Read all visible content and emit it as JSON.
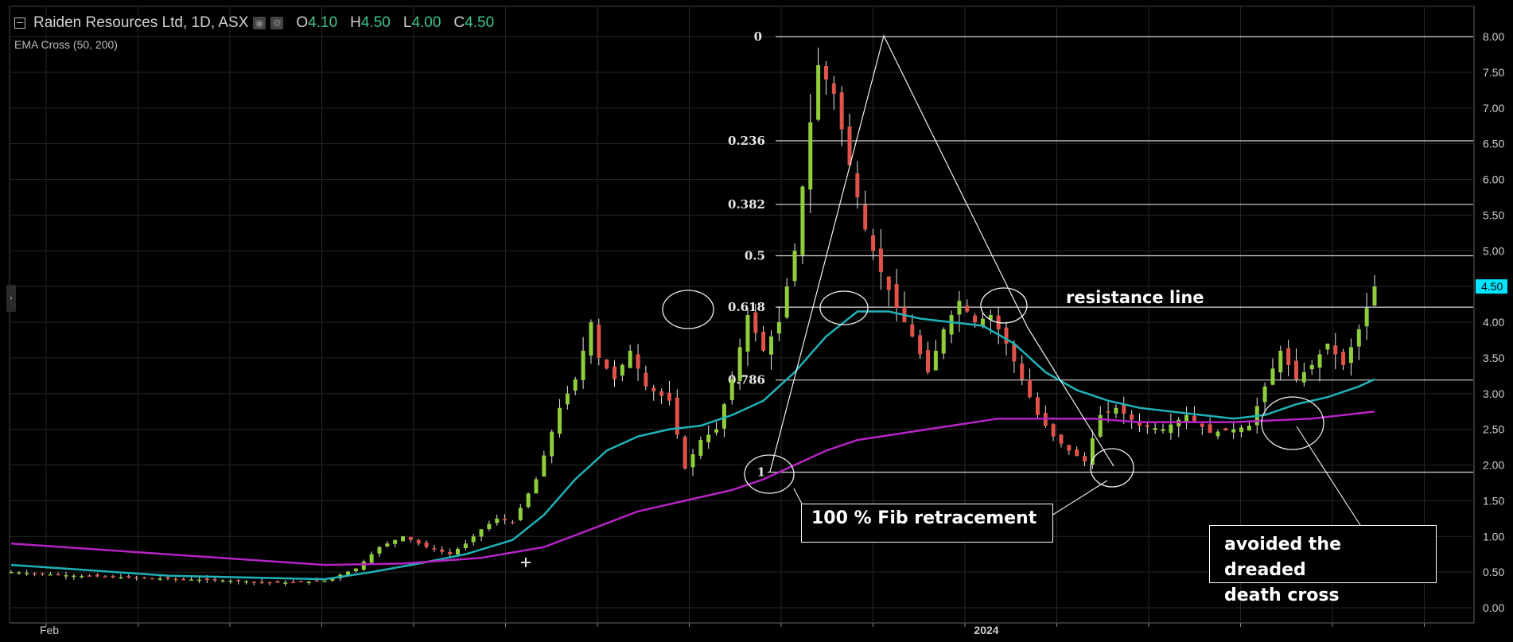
{
  "header": {
    "symbol": "Raiden Resources Ltd, 1D, ASX",
    "open_label": "O",
    "open_value": "4.10",
    "high_label": "H",
    "high_value": "4.50",
    "low_label": "L",
    "low_value": "4.00",
    "close_label": "C",
    "close_value": "4.50",
    "indicator": "EMA Cross (50, 200)",
    "settings_icon": "gear-icon",
    "visibility_icon": "eye-icon",
    "panel_toggle_icon": "chevron-right-icon"
  },
  "colors": {
    "background": "#000000",
    "grid": "#262626",
    "up_candle": "#8fce3a",
    "down_candle": "#e0524a",
    "ema50": "#1fb2b8",
    "ema200": "#b623c4",
    "price_tag": "#00e5ff",
    "header_values": "#3ec48a"
  },
  "annotations": {
    "resistance": "resistance line",
    "fib_retracement": "100 % Fib retracement",
    "death_cross_line1": "avoided the dreaded",
    "death_cross_line2": "death cross"
  },
  "chart_data": {
    "type": "candlestick",
    "title": "Raiden Resources Ltd, 1D, ASX",
    "x_tick_labels": [
      "Feb",
      "2024"
    ],
    "y_ticks": [
      "8.00",
      "7.50",
      "7.00",
      "6.50",
      "6.00",
      "5.50",
      "5.00",
      "4.50",
      "4.00",
      "3.50",
      "3.00",
      "2.50",
      "2.00",
      "1.50",
      "1.00",
      "0.50",
      "0.00"
    ],
    "ylim": [
      0,
      8.1
    ],
    "last_price": "4.50",
    "fib_levels": [
      {
        "label": "0",
        "price": 8.0
      },
      {
        "label": "0.236",
        "price": 6.54
      },
      {
        "label": "0.382",
        "price": 5.65
      },
      {
        "label": "0.5",
        "price": 4.93
      },
      {
        "label": "0.618",
        "price": 4.21
      },
      {
        "label": "0.786",
        "price": 3.19
      },
      {
        "label": "1",
        "price": 1.9
      }
    ],
    "price_path": [
      [
        0,
        0.5
      ],
      [
        8,
        0.45
      ],
      [
        16,
        0.42
      ],
      [
        22,
        0.4
      ],
      [
        28,
        0.38
      ],
      [
        34,
        0.35
      ],
      [
        40,
        0.38
      ],
      [
        44,
        0.55
      ],
      [
        47,
        0.85
      ],
      [
        50,
        1.0
      ],
      [
        53,
        0.85
      ],
      [
        56,
        0.75
      ],
      [
        58,
        0.9
      ],
      [
        60,
        1.1
      ],
      [
        62,
        1.25
      ],
      [
        64,
        1.2
      ],
      [
        67,
        1.8
      ],
      [
        70,
        2.8
      ],
      [
        72,
        3.2
      ],
      [
        74,
        4.0
      ],
      [
        75,
        3.5
      ],
      [
        77,
        3.2
      ],
      [
        79,
        3.6
      ],
      [
        81,
        3.1
      ],
      [
        84,
        2.9
      ],
      [
        86,
        1.95
      ],
      [
        88,
        2.35
      ],
      [
        90,
        2.5
      ],
      [
        92,
        3.2
      ],
      [
        94,
        4.1
      ],
      [
        96,
        3.6
      ],
      [
        98,
        4.0
      ],
      [
        100,
        5.0
      ],
      [
        102,
        6.8
      ],
      [
        103,
        7.6
      ],
      [
        105,
        7.2
      ],
      [
        107,
        6.2
      ],
      [
        109,
        5.3
      ],
      [
        111,
        4.7
      ],
      [
        113,
        4.2
      ],
      [
        115,
        3.8
      ],
      [
        117,
        3.3
      ],
      [
        119,
        3.9
      ],
      [
        121,
        4.3
      ],
      [
        123,
        4.0
      ],
      [
        125,
        4.1
      ],
      [
        127,
        3.7
      ],
      [
        129,
        3.2
      ],
      [
        131,
        2.7
      ],
      [
        133,
        2.4
      ],
      [
        135,
        2.2
      ],
      [
        137,
        2.05
      ],
      [
        139,
        2.7
      ],
      [
        141,
        2.8
      ],
      [
        144,
        2.55
      ],
      [
        147,
        2.5
      ],
      [
        150,
        2.7
      ],
      [
        153,
        2.45
      ],
      [
        156,
        2.5
      ],
      [
        158,
        2.55
      ],
      [
        160,
        3.1
      ],
      [
        162,
        3.6
      ],
      [
        164,
        3.2
      ],
      [
        166,
        3.4
      ],
      [
        168,
        3.7
      ],
      [
        170,
        3.4
      ],
      [
        172,
        3.9
      ],
      [
        174,
        4.5
      ]
    ],
    "series": [
      {
        "name": "EMA 50",
        "path": [
          [
            0,
            0.6
          ],
          [
            20,
            0.45
          ],
          [
            40,
            0.4
          ],
          [
            46,
            0.5
          ],
          [
            52,
            0.62
          ],
          [
            58,
            0.75
          ],
          [
            64,
            0.95
          ],
          [
            68,
            1.3
          ],
          [
            72,
            1.8
          ],
          [
            76,
            2.2
          ],
          [
            80,
            2.4
          ],
          [
            84,
            2.5
          ],
          [
            88,
            2.55
          ],
          [
            92,
            2.7
          ],
          [
            96,
            2.9
          ],
          [
            100,
            3.3
          ],
          [
            104,
            3.8
          ],
          [
            108,
            4.15
          ],
          [
            112,
            4.15
          ],
          [
            116,
            4.05
          ],
          [
            120,
            4.0
          ],
          [
            124,
            3.95
          ],
          [
            128,
            3.7
          ],
          [
            132,
            3.3
          ],
          [
            136,
            3.05
          ],
          [
            140,
            2.9
          ],
          [
            144,
            2.8
          ],
          [
            148,
            2.75
          ],
          [
            152,
            2.7
          ],
          [
            156,
            2.65
          ],
          [
            160,
            2.7
          ],
          [
            164,
            2.85
          ],
          [
            168,
            2.95
          ],
          [
            172,
            3.1
          ],
          [
            174,
            3.2
          ]
        ]
      },
      {
        "name": "EMA 200",
        "path": [
          [
            0,
            0.9
          ],
          [
            20,
            0.75
          ],
          [
            40,
            0.6
          ],
          [
            50,
            0.62
          ],
          [
            60,
            0.7
          ],
          [
            68,
            0.85
          ],
          [
            74,
            1.1
          ],
          [
            80,
            1.35
          ],
          [
            86,
            1.5
          ],
          [
            92,
            1.65
          ],
          [
            96,
            1.8
          ],
          [
            100,
            2.0
          ],
          [
            104,
            2.2
          ],
          [
            108,
            2.35
          ],
          [
            114,
            2.45
          ],
          [
            120,
            2.55
          ],
          [
            126,
            2.65
          ],
          [
            132,
            2.65
          ],
          [
            138,
            2.65
          ],
          [
            144,
            2.6
          ],
          [
            150,
            2.6
          ],
          [
            156,
            2.6
          ],
          [
            160,
            2.62
          ],
          [
            166,
            2.65
          ],
          [
            170,
            2.7
          ],
          [
            174,
            2.75
          ]
        ]
      }
    ]
  }
}
